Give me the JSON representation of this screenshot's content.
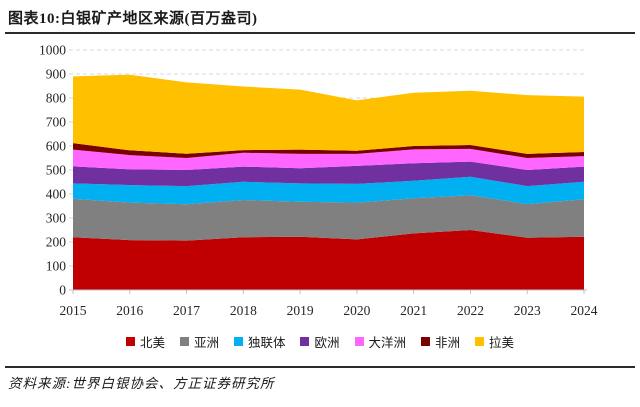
{
  "header": {
    "title": "图表10:白银矿产地区来源(百万盎司)"
  },
  "footer": {
    "source": "资料来源:世界白银协会、方正证券研究所"
  },
  "chart_data": {
    "type": "area",
    "stacked": true,
    "title": "图表10:白银矿产地区来源(百万盎司)",
    "unit": "百万盎司",
    "x": [
      2015,
      2016,
      2017,
      2018,
      2019,
      2020,
      2021,
      2022,
      2023,
      2024
    ],
    "series": [
      {
        "name": "北美",
        "color": "#C00000",
        "values": [
          220,
          208,
          206,
          220,
          222,
          211,
          236,
          250,
          218,
          222
        ]
      },
      {
        "name": "亚洲",
        "color": "#808080",
        "values": [
          160,
          156,
          151,
          155,
          146,
          153,
          146,
          145,
          140,
          156
        ]
      },
      {
        "name": "独联体",
        "color": "#00B0F0",
        "values": [
          64,
          73,
          76,
          76,
          76,
          78,
          73,
          77,
          75,
          73
        ]
      },
      {
        "name": "欧洲",
        "color": "#7030A0",
        "values": [
          71,
          66,
          67,
          63,
          63,
          75,
          73,
          63,
          67,
          63
        ]
      },
      {
        "name": "大洋洲",
        "color": "#FF66FF",
        "values": [
          70,
          59,
          50,
          58,
          60,
          50,
          58,
          53,
          50,
          44
        ]
      },
      {
        "name": "非洲",
        "color": "#7B0000",
        "values": [
          27,
          20,
          18,
          11,
          18,
          13,
          14,
          16,
          17,
          17
        ]
      },
      {
        "name": "拉美",
        "color": "#FFC000",
        "values": [
          278,
          315,
          297,
          265,
          250,
          210,
          222,
          226,
          245,
          231
        ]
      }
    ],
    "totals": [
      890,
      897,
      865,
      848,
      835,
      790,
      822,
      830,
      812,
      806
    ],
    "ylim": [
      0,
      1000
    ],
    "ytick_step": 100,
    "yticks": [
      "0",
      "100",
      "200",
      "300",
      "400",
      "500",
      "600",
      "700",
      "800",
      "900",
      "1000"
    ],
    "grid": "horizontal-dashed",
    "grid_color": "#D9D9D9",
    "axis_color": "#BFBFBF",
    "label_color": "#262626",
    "legend_position": "bottom"
  }
}
